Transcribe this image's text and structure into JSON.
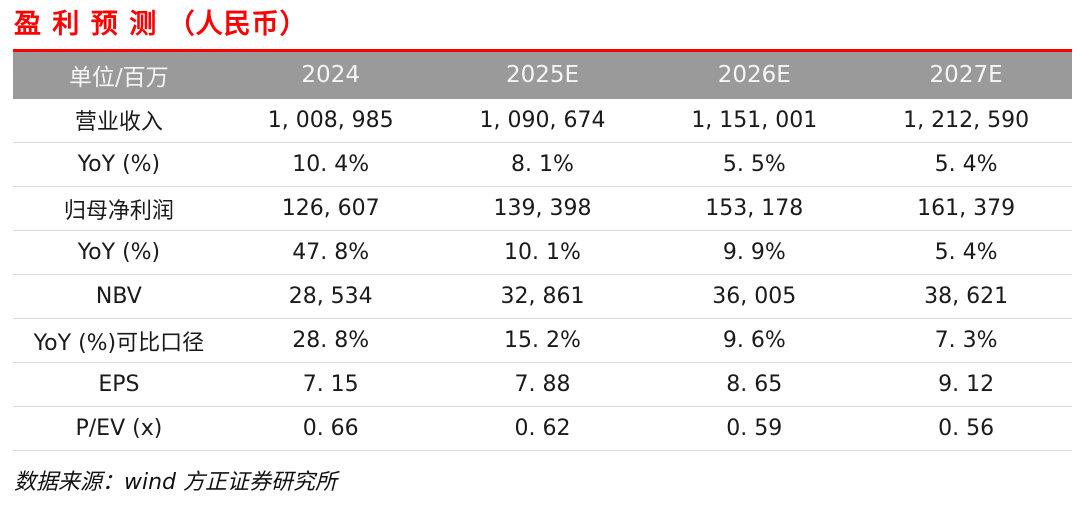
{
  "title": "盈 利 预 测  （人民币）",
  "table": {
    "columns": [
      "单位/百万",
      "2024",
      "2025E",
      "2026E",
      "2027E"
    ],
    "rows": [
      {
        "label": "营业收入",
        "values": [
          "1, 008, 985",
          "1, 090, 674",
          "1, 151, 001",
          "1, 212, 590"
        ]
      },
      {
        "label": "YoY (%)",
        "values": [
          "10. 4%",
          "8. 1%",
          "5. 5%",
          "5. 4%"
        ]
      },
      {
        "label": "归母净利润",
        "values": [
          "126, 607",
          "139, 398",
          "153, 178",
          "161, 379"
        ]
      },
      {
        "label": "YoY (%)",
        "values": [
          "47. 8%",
          "10. 1%",
          "9. 9%",
          "5. 4%"
        ]
      },
      {
        "label": "NBV",
        "values": [
          "28, 534",
          "32, 861",
          "36, 005",
          "38, 621"
        ]
      },
      {
        "label": "YoY (%)可比口径",
        "values": [
          "28. 8%",
          "15. 2%",
          "9. 6%",
          "7. 3%"
        ]
      },
      {
        "label": "EPS",
        "values": [
          "7. 15",
          "7. 88",
          "8. 65",
          "9. 12"
        ]
      },
      {
        "label": "P/EV (x)",
        "values": [
          "0. 66",
          "0. 62",
          "0. 59",
          "0. 56"
        ]
      }
    ]
  },
  "footer": "数据来源：wind 方正证券研究所",
  "colors": {
    "accent_red": "#ff0000",
    "header_bg": "#9a9a9a",
    "header_text": "#f5f5f5",
    "row_line": "#d9d9d9",
    "text": "#1a1a1a"
  }
}
